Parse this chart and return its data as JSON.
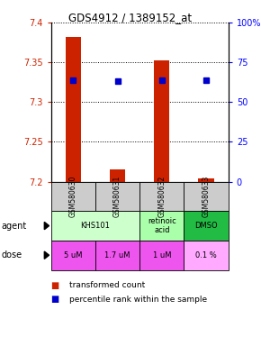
{
  "title": "GDS4912 / 1389152_at",
  "samples": [
    "GSM580630",
    "GSM580631",
    "GSM580632",
    "GSM580633"
  ],
  "bar_values": [
    7.382,
    7.215,
    7.352,
    7.204
  ],
  "bar_base": 7.2,
  "blue_marker_values": [
    7.328,
    7.326,
    7.328,
    7.327
  ],
  "ylim_left": [
    7.2,
    7.4
  ],
  "ylim_right": [
    0,
    100
  ],
  "yticks_left": [
    7.2,
    7.25,
    7.3,
    7.35,
    7.4
  ],
  "ytick_labels_left": [
    "7.2",
    "7.25",
    "7.3",
    "7.35",
    "7.4"
  ],
  "yticks_right": [
    0,
    25,
    50,
    75,
    100
  ],
  "ytick_labels_right": [
    "0",
    "25",
    "50",
    "75",
    "100%"
  ],
  "bar_color": "#cc2200",
  "blue_color": "#0000cc",
  "agent_groups": [
    {
      "cols": [
        0,
        1
      ],
      "label": "KHS101",
      "color": "#ccffcc"
    },
    {
      "cols": [
        2
      ],
      "label": "retinoic\nacid",
      "color": "#aaffaa"
    },
    {
      "cols": [
        3
      ],
      "label": "DMSO",
      "color": "#22bb44"
    }
  ],
  "dose_labels": [
    "5 uM",
    "1.7 uM",
    "1 uM",
    "0.1 %"
  ],
  "dose_colors": [
    "#ee55ee",
    "#ee55ee",
    "#ee55ee",
    "#ffaaff"
  ],
  "sample_bg": "#cccccc",
  "legend_red_label": "transformed count",
  "legend_blue_label": "percentile rank within the sample"
}
